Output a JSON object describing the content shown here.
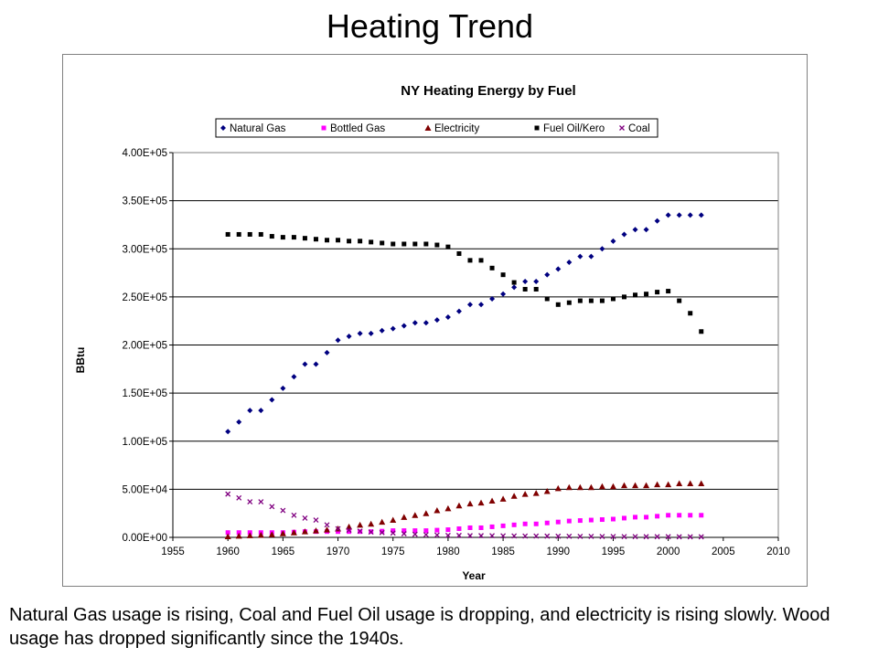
{
  "slide": {
    "title": "Heating Trend",
    "caption": "Natural Gas usage is rising, Coal and Fuel Oil usage is dropping, and electricity is rising slowly.  Wood usage has dropped significantly since the 1940s."
  },
  "chart_data": {
    "type": "scatter",
    "title": "NY Heating Energy by Fuel",
    "xlabel": "Year",
    "ylabel": "BBtu",
    "xlim": [
      1955,
      2010
    ],
    "ylim": [
      0,
      400000
    ],
    "x_ticks": [
      "1955",
      "1960",
      "1965",
      "1970",
      "1975",
      "1980",
      "1985",
      "1990",
      "1995",
      "2000",
      "2005",
      "2010"
    ],
    "y_ticks": [
      "0.00E+00",
      "5.00E+04",
      "1.00E+05",
      "1.50E+05",
      "2.00E+05",
      "2.50E+05",
      "3.00E+05",
      "3.50E+05",
      "4.00E+05"
    ],
    "grid": "horizontal",
    "legend": "top",
    "x": [
      1960,
      1961,
      1962,
      1963,
      1964,
      1965,
      1966,
      1967,
      1968,
      1969,
      1970,
      1971,
      1972,
      1973,
      1974,
      1975,
      1976,
      1977,
      1978,
      1979,
      1980,
      1981,
      1982,
      1983,
      1984,
      1985,
      1986,
      1987,
      1988,
      1989,
      1990,
      1991,
      1992,
      1993,
      1994,
      1995,
      1996,
      1997,
      1998,
      1999,
      2000,
      2001,
      2002,
      2003
    ],
    "series": [
      {
        "name": "Natural Gas",
        "color": "#000080",
        "marker": "diamond",
        "values": [
          110000,
          120000,
          132000,
          132000,
          143000,
          155000,
          167000,
          180000,
          180000,
          192000,
          205000,
          209000,
          212000,
          212000,
          215000,
          217000,
          220000,
          223000,
          223000,
          226000,
          229000,
          235000,
          242000,
          242000,
          248000,
          253000,
          260000,
          266000,
          266000,
          273000,
          279000,
          286000,
          292000,
          292000,
          300000,
          308000,
          315000,
          320000,
          320000,
          329000,
          335000,
          335000,
          335000,
          335000
        ]
      },
      {
        "name": "Bottled Gas",
        "color": "#ff00ff",
        "marker": "square",
        "values": [
          5000,
          5000,
          5000,
          5000,
          5000,
          5000,
          5500,
          6000,
          6000,
          6000,
          6000,
          6000,
          6000,
          6000,
          6500,
          7000,
          7000,
          7000,
          7000,
          7500,
          8000,
          9000,
          10000,
          10000,
          11000,
          12000,
          13000,
          14000,
          14000,
          15000,
          16000,
          17000,
          17500,
          18000,
          18500,
          19000,
          20000,
          21000,
          21000,
          22000,
          23000,
          23000,
          23000,
          23000
        ]
      },
      {
        "name": "Electricity",
        "color": "#800000",
        "marker": "triangle",
        "values": [
          1000,
          1500,
          2000,
          2500,
          3000,
          4000,
          5000,
          6000,
          7000,
          8000,
          9000,
          11000,
          13000,
          14000,
          16000,
          18000,
          21000,
          23000,
          25000,
          28000,
          30000,
          33000,
          35000,
          36000,
          38000,
          40000,
          43000,
          45000,
          46000,
          48000,
          51000,
          52000,
          52000,
          52000,
          53000,
          53000,
          54000,
          54000,
          54000,
          55000,
          55000,
          56000,
          56000,
          56000
        ]
      },
      {
        "name": "Fuel Oil/Kero",
        "color": "#000000",
        "marker": "square",
        "values": [
          315000,
          315000,
          315000,
          315000,
          313000,
          312000,
          312000,
          311000,
          310000,
          309000,
          309000,
          308000,
          308000,
          307000,
          306000,
          305000,
          305000,
          305000,
          305000,
          304000,
          302000,
          295000,
          288000,
          288000,
          280000,
          273000,
          265000,
          258000,
          258000,
          248000,
          242000,
          244000,
          246000,
          246000,
          246000,
          248000,
          250000,
          252000,
          253000,
          255000,
          256000,
          246000,
          233000,
          214000
        ]
      },
      {
        "name": "Coal",
        "color": "#800080",
        "marker": "x",
        "values": [
          45000,
          41000,
          37000,
          37000,
          32000,
          28000,
          23000,
          20000,
          18000,
          13000,
          9000,
          7500,
          6500,
          5500,
          5000,
          4500,
          3800,
          3200,
          2800,
          2400,
          2000,
          2000,
          1800,
          1800,
          1700,
          1600,
          1500,
          1400,
          1400,
          1300,
          1200,
          1100,
          1000,
          1000,
          900,
          900,
          800,
          800,
          700,
          700,
          700,
          600,
          600,
          600
        ]
      }
    ]
  }
}
